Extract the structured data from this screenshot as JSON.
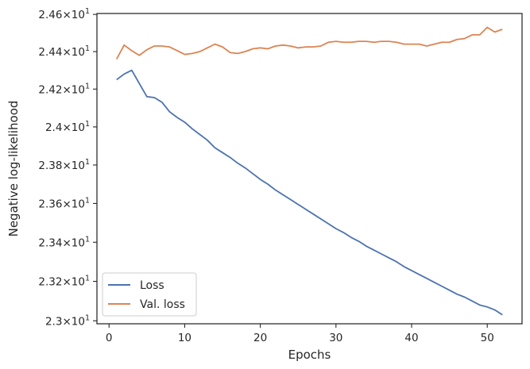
{
  "chart_data": {
    "type": "line",
    "xlabel": "Epochs",
    "ylabel": "Negative log-likelihood",
    "xlim": [
      -1.6,
      54.6
    ],
    "ylim": [
      22.985,
      24.605
    ],
    "y_scale": "log",
    "x_ticks": [
      0,
      10,
      20,
      30,
      40,
      50
    ],
    "y_ticks": [
      {
        "value": 23.0,
        "mantissa": "2.3",
        "base": "10",
        "exp": "1"
      },
      {
        "value": 23.2,
        "mantissa": "2.32",
        "base": "10",
        "exp": "1"
      },
      {
        "value": 23.4,
        "mantissa": "2.34",
        "base": "10",
        "exp": "1"
      },
      {
        "value": 23.6,
        "mantissa": "2.36",
        "base": "10",
        "exp": "1"
      },
      {
        "value": 23.8,
        "mantissa": "2.38",
        "base": "10",
        "exp": "1"
      },
      {
        "value": 24.0,
        "mantissa": "2.4",
        "base": "10",
        "exp": "1"
      },
      {
        "value": 24.2,
        "mantissa": "2.42",
        "base": "10",
        "exp": "1"
      },
      {
        "value": 24.4,
        "mantissa": "2.44",
        "base": "10",
        "exp": "1"
      },
      {
        "value": 24.6,
        "mantissa": "2.46",
        "base": "10",
        "exp": "1"
      }
    ],
    "grid": false,
    "legend_position": "lower-left",
    "x": [
      1,
      2,
      3,
      4,
      5,
      6,
      7,
      8,
      9,
      10,
      11,
      12,
      13,
      14,
      15,
      16,
      17,
      18,
      19,
      20,
      21,
      22,
      23,
      24,
      25,
      26,
      27,
      28,
      29,
      30,
      31,
      32,
      33,
      34,
      35,
      36,
      37,
      38,
      39,
      40,
      41,
      42,
      43,
      44,
      45,
      46,
      47,
      48,
      49,
      50,
      51,
      52
    ],
    "series": [
      {
        "name": "Loss",
        "color": "#4c72b0",
        "values": [
          24.25,
          24.28,
          24.3,
          24.23,
          24.16,
          24.155,
          24.13,
          24.08,
          24.05,
          24.025,
          23.99,
          23.96,
          23.93,
          23.89,
          23.865,
          23.84,
          23.81,
          23.785,
          23.755,
          23.725,
          23.7,
          23.67,
          23.645,
          23.62,
          23.595,
          23.57,
          23.545,
          23.52,
          23.495,
          23.47,
          23.45,
          23.425,
          23.405,
          23.38,
          23.36,
          23.34,
          23.32,
          23.3,
          23.275,
          23.255,
          23.235,
          23.215,
          23.195,
          23.175,
          23.155,
          23.135,
          23.12,
          23.1,
          23.08,
          23.07,
          23.055,
          23.03
        ]
      },
      {
        "name": "Val. loss",
        "color": "#dd8452",
        "values": [
          24.36,
          24.435,
          24.405,
          24.38,
          24.41,
          24.43,
          24.43,
          24.425,
          24.405,
          24.385,
          24.39,
          24.4,
          24.42,
          24.44,
          24.425,
          24.395,
          24.39,
          24.4,
          24.415,
          24.42,
          24.415,
          24.43,
          24.435,
          24.43,
          24.42,
          24.425,
          24.425,
          24.43,
          24.45,
          24.455,
          24.45,
          24.45,
          24.455,
          24.455,
          24.45,
          24.455,
          24.455,
          24.45,
          24.44,
          24.44,
          24.44,
          24.43,
          24.44,
          24.45,
          24.45,
          24.465,
          24.47,
          24.49,
          24.49,
          24.53,
          24.505,
          24.52
        ]
      }
    ]
  }
}
